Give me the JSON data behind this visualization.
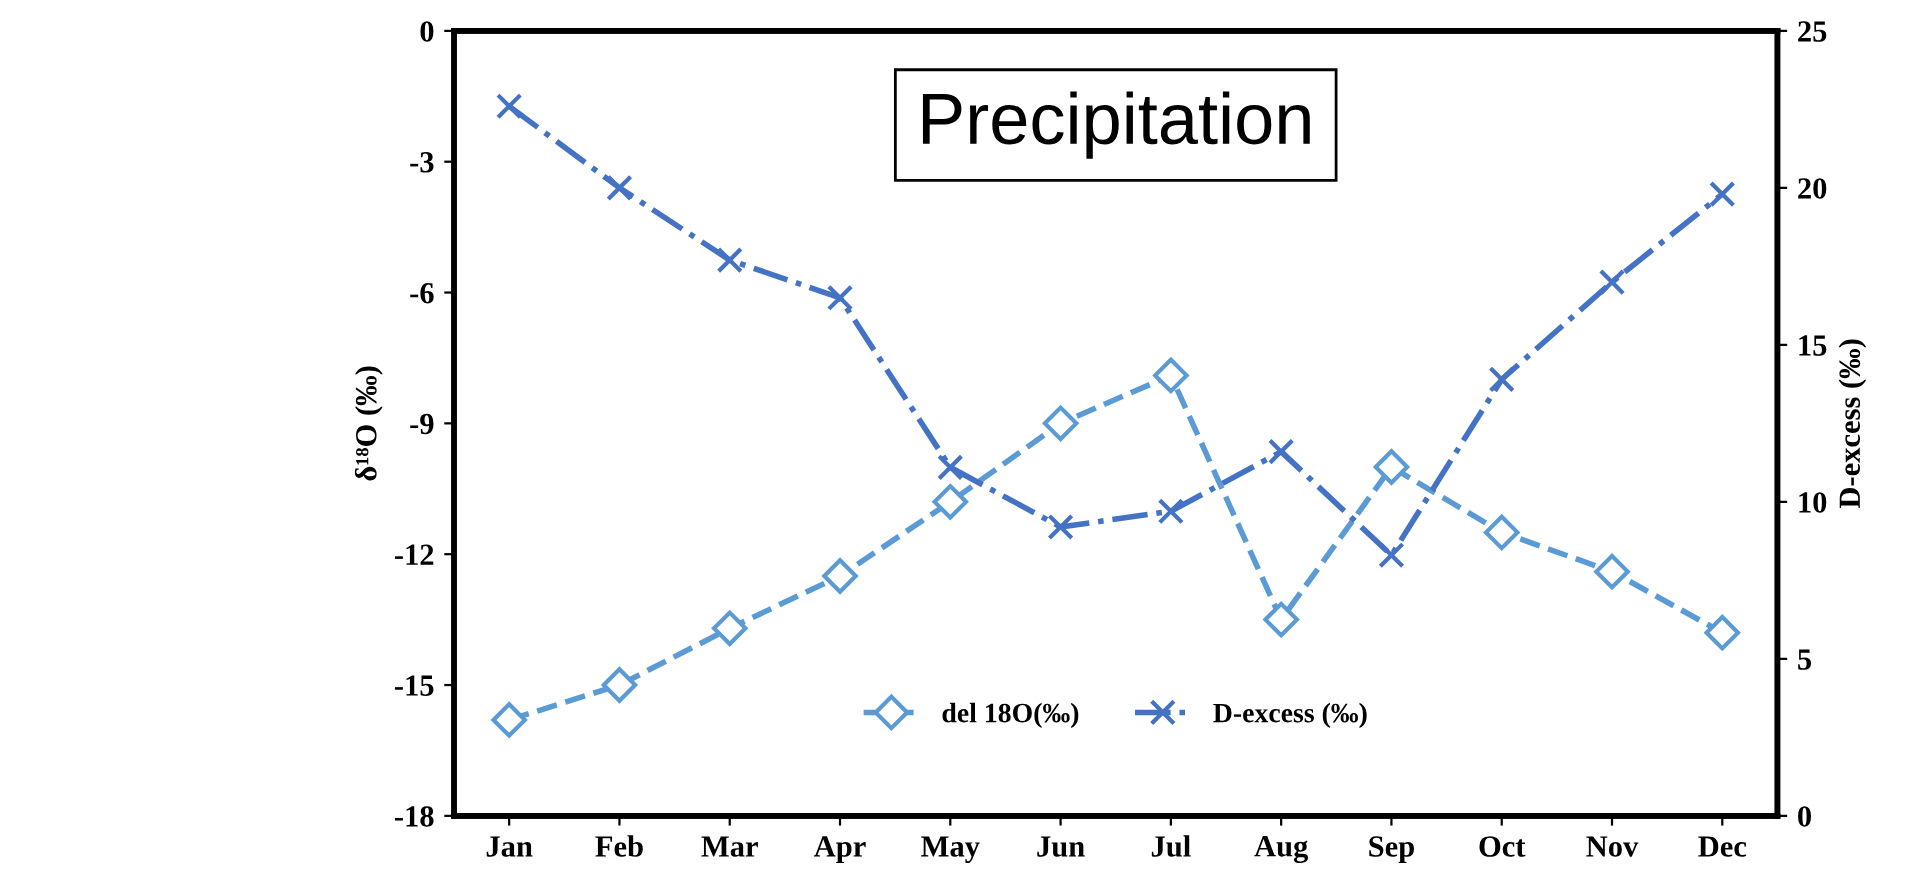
{
  "chart_data": {
    "type": "line",
    "title": "Precipitation",
    "ylabel": "δ¹⁸O (‰)",
    "y2label": "D-excess (‰)",
    "categories": [
      "Jan",
      "Feb",
      "Mar",
      "Apr",
      "May",
      "Jun",
      "Jul",
      "Aug",
      "Sep",
      "Oct",
      "Nov",
      "Dec"
    ],
    "series": [
      {
        "name": "del 18O(‰)",
        "color": "#5b9bd5",
        "marker": "diamond",
        "line_style": "dashed",
        "values": [
          -15.8,
          -15.0,
          -13.7,
          -12.5,
          -10.8,
          -9.0,
          -7.9,
          -13.5,
          -10.0,
          -11.5,
          -12.4,
          -13.8
        ]
      },
      {
        "name": "D-excess (‰)",
        "color": "#4472c4",
        "marker": "cross",
        "line_style": "dashdot",
        "axis": "y2",
        "values": [
          22.6,
          20.0,
          17.7,
          16.5,
          11.1,
          9.2,
          9.7,
          11.6,
          8.3,
          13.9,
          17.0,
          19.8
        ]
      }
    ],
    "ylim": [
      -18,
      0
    ],
    "yticks": [
      -18,
      -15,
      -12,
      -9,
      -6,
      -3,
      0
    ],
    "y2lim": [
      0,
      25
    ],
    "y2ticks": [
      0,
      5,
      10,
      15,
      20,
      25
    ],
    "grid": false,
    "legend": "bottom"
  }
}
